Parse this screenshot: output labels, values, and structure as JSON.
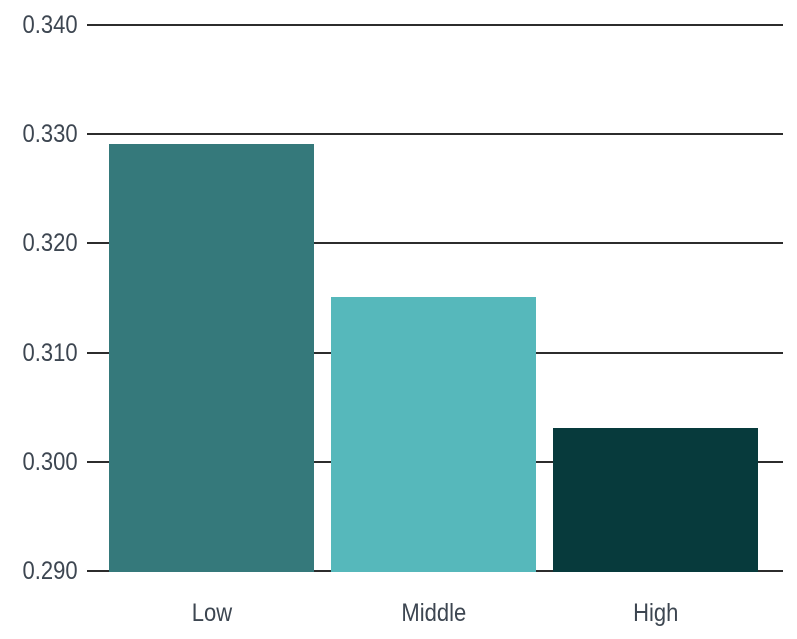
{
  "chart_data": {
    "type": "bar",
    "categories": [
      "Low",
      "Middle",
      "High"
    ],
    "values": [
      0.329,
      0.315,
      0.303
    ],
    "bar_colors": [
      "#35797b",
      "#56b8bb",
      "#073a3c"
    ],
    "title": "",
    "xlabel": "",
    "ylabel": "",
    "ylim": [
      0.29,
      0.34
    ],
    "yticks": [
      0.29,
      0.3,
      0.31,
      0.32,
      0.33,
      0.34
    ],
    "ytick_labels": [
      "0.290",
      "0.300",
      "0.310",
      "0.320",
      "0.330",
      "0.340"
    ],
    "grid": true,
    "legend": "none"
  },
  "colors": {
    "background": "#ffffff",
    "gridline": "#2c2c2c",
    "tick_text": "#3d4651"
  }
}
